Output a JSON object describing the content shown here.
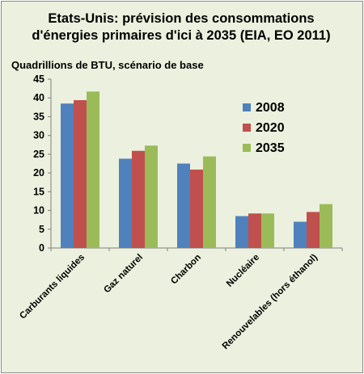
{
  "chart_data": {
    "type": "bar",
    "title_line1": "Etats-Unis:  prévision des consommations",
    "title_line2": "d'énergies primaires d'ici à 2035 (EIA, EO 2011)",
    "ylabel": "Quadrillions de BTU, scénario de base",
    "xlabel": "",
    "categories": [
      "Carburants liquides",
      "Gaz naturel",
      "Charbon",
      "Nucléaire",
      "Renouvelables (hors éthanol)"
    ],
    "series": [
      {
        "name": "2008",
        "color": "#4f81bd",
        "values": [
          38.5,
          23.8,
          22.5,
          8.5,
          7.0
        ]
      },
      {
        "name": "2020",
        "color": "#c0504d",
        "values": [
          39.4,
          25.9,
          20.9,
          9.2,
          9.6
        ]
      },
      {
        "name": "2035",
        "color": "#9bbb59",
        "values": [
          41.7,
          27.3,
          24.4,
          9.2,
          11.7
        ]
      }
    ],
    "ylim": [
      0,
      45
    ],
    "yticks": [
      "0",
      "5",
      "10",
      "15",
      "20",
      "25",
      "30",
      "35",
      "40",
      "45"
    ],
    "grid": false,
    "legend_position": "right"
  }
}
